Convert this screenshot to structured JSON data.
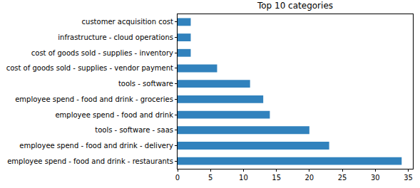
{
  "chart_data": {
    "type": "bar",
    "orientation": "horizontal",
    "title": "Top 10 categories",
    "categories": [
      "employee spend - food and drink - restaurants",
      "employee spend - food and drink - delivery",
      "tools - software - saas",
      "employee spend - food and drink",
      "employee spend - food and drink - groceries",
      "tools - software",
      "cost of goods sold - supplies - vendor payment",
      "cost of goods sold - supplies - inventory",
      "infrastructure - cloud operations",
      "customer acquisition cost"
    ],
    "values": [
      34,
      23,
      20,
      14,
      13,
      11,
      6,
      2,
      2,
      2
    ],
    "color": "#3182bd",
    "xlim": [
      0,
      35.7
    ],
    "xticks": [
      0,
      5,
      10,
      15,
      20,
      25,
      30,
      35
    ],
    "grid": false
  }
}
